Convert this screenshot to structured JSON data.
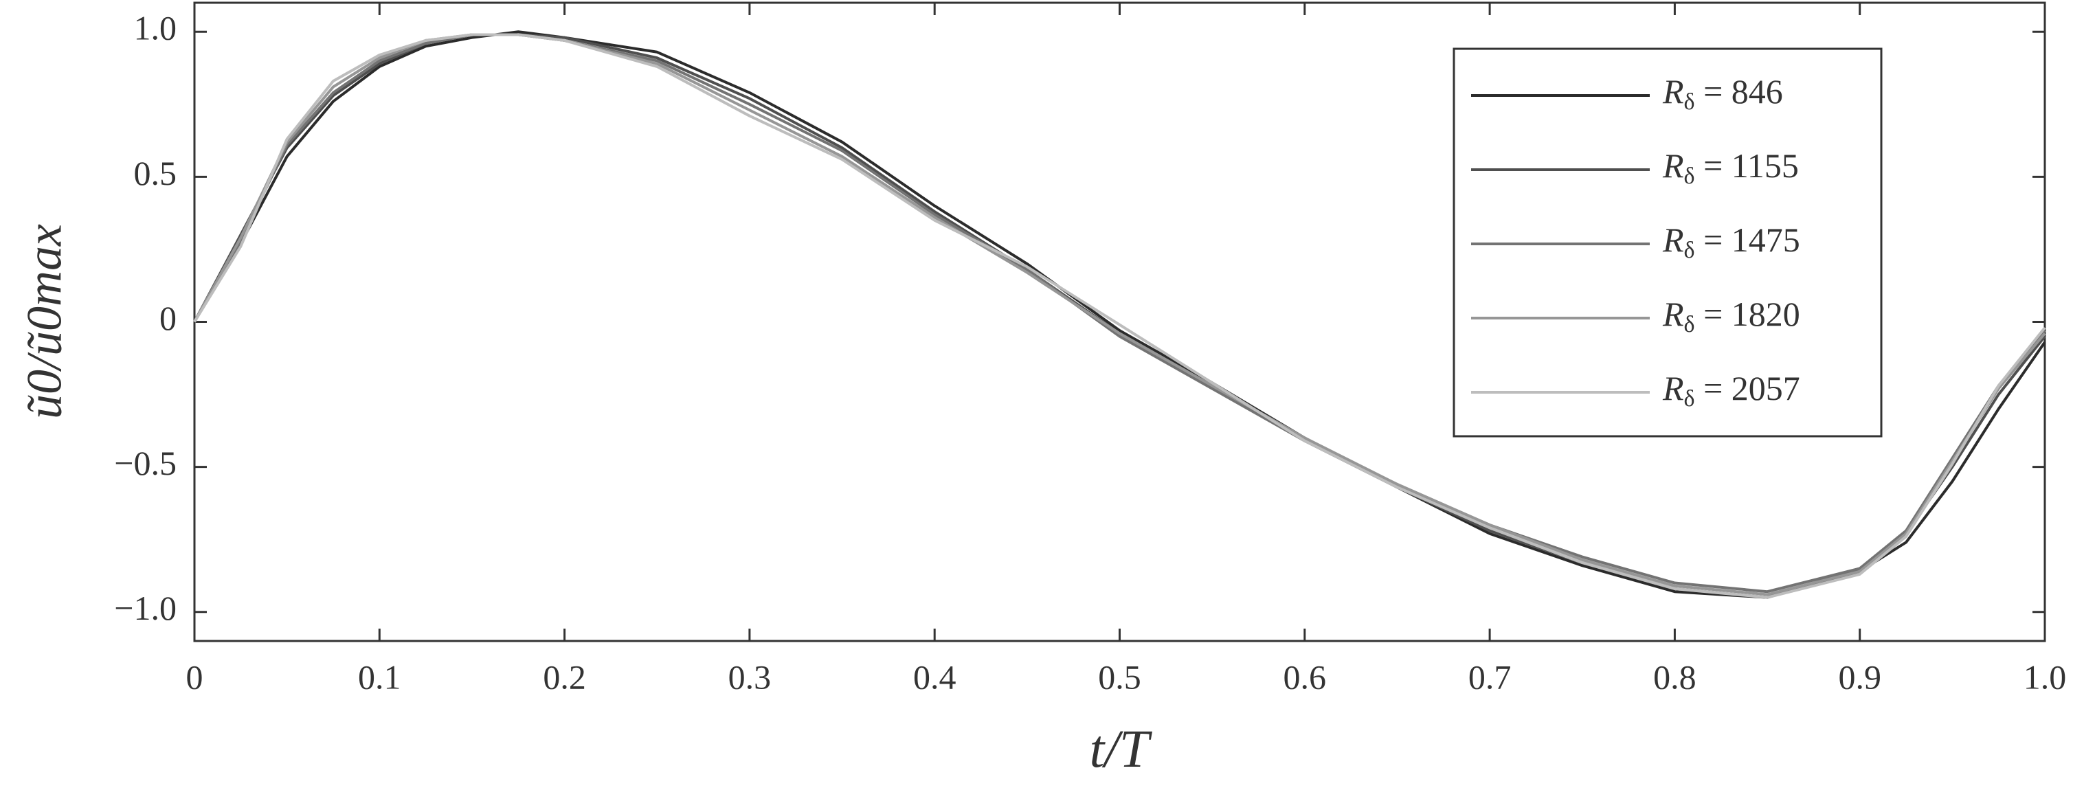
{
  "chart_data": {
    "type": "line",
    "x_label": "t/T",
    "y_label": "ũ0/ũ0max",
    "x": [
      0,
      0.025,
      0.05,
      0.075,
      0.1,
      0.125,
      0.15,
      0.175,
      0.2,
      0.25,
      0.3,
      0.35,
      0.4,
      0.45,
      0.5,
      0.55,
      0.6,
      0.65,
      0.7,
      0.75,
      0.8,
      0.85,
      0.9,
      0.925,
      0.95,
      0.975,
      1
    ],
    "series": [
      {
        "name": "Rδ = 846",
        "color": "#2b2b2b",
        "values": [
          0,
          0.27,
          0.57,
          0.76,
          0.88,
          0.95,
          0.98,
          1.0,
          0.98,
          0.93,
          0.79,
          0.62,
          0.4,
          0.2,
          -0.03,
          -0.21,
          -0.4,
          -0.57,
          -0.73,
          -0.84,
          -0.93,
          -0.95,
          -0.86,
          -0.76,
          -0.55,
          -0.3,
          -0.07
        ]
      },
      {
        "name": "Rδ = 1155",
        "color": "#4f4f4f",
        "values": [
          0,
          0.3,
          0.6,
          0.78,
          0.89,
          0.96,
          0.99,
          0.99,
          0.98,
          0.91,
          0.77,
          0.6,
          0.38,
          0.18,
          -0.04,
          -0.22,
          -0.41,
          -0.57,
          -0.72,
          -0.83,
          -0.92,
          -0.95,
          -0.85,
          -0.73,
          -0.5,
          -0.25,
          -0.05
        ]
      },
      {
        "name": "Rδ = 1475",
        "color": "#737373",
        "values": [
          0,
          0.28,
          0.61,
          0.79,
          0.9,
          0.96,
          0.99,
          0.99,
          0.97,
          0.9,
          0.75,
          0.59,
          0.37,
          0.18,
          -0.05,
          -0.23,
          -0.41,
          -0.56,
          -0.7,
          -0.81,
          -0.9,
          -0.93,
          -0.85,
          -0.72,
          -0.47,
          -0.22,
          -0.03
        ]
      },
      {
        "name": "Rδ = 1820",
        "color": "#969696",
        "values": [
          0,
          0.29,
          0.62,
          0.81,
          0.91,
          0.97,
          0.99,
          0.99,
          0.97,
          0.89,
          0.73,
          0.57,
          0.36,
          0.17,
          -0.04,
          -0.22,
          -0.4,
          -0.56,
          -0.7,
          -0.82,
          -0.91,
          -0.94,
          -0.86,
          -0.73,
          -0.48,
          -0.23,
          -0.04
        ]
      },
      {
        "name": "Rδ = 2057",
        "color": "#bdbdbd",
        "values": [
          0,
          0.26,
          0.63,
          0.83,
          0.92,
          0.97,
          0.99,
          0.99,
          0.97,
          0.88,
          0.71,
          0.56,
          0.35,
          0.19,
          -0.01,
          -0.21,
          -0.41,
          -0.57,
          -0.71,
          -0.83,
          -0.92,
          -0.95,
          -0.87,
          -0.74,
          -0.49,
          -0.22,
          -0.02
        ]
      }
    ],
    "xlim": [
      0,
      1
    ],
    "ylim": [
      -1.1,
      1.1
    ],
    "xticks": [
      0,
      0.1,
      0.2,
      0.3,
      0.4,
      0.5,
      0.6,
      0.7,
      0.8,
      0.9,
      {
        "value": 1,
        "label": "1.0"
      }
    ],
    "yticks": [
      {
        "value": -1,
        "label": "−1.0"
      },
      {
        "value": -0.5,
        "label": "−0.5"
      },
      0,
      0.5,
      {
        "value": 1,
        "label": "1.0"
      }
    ],
    "legend": "upper right"
  }
}
